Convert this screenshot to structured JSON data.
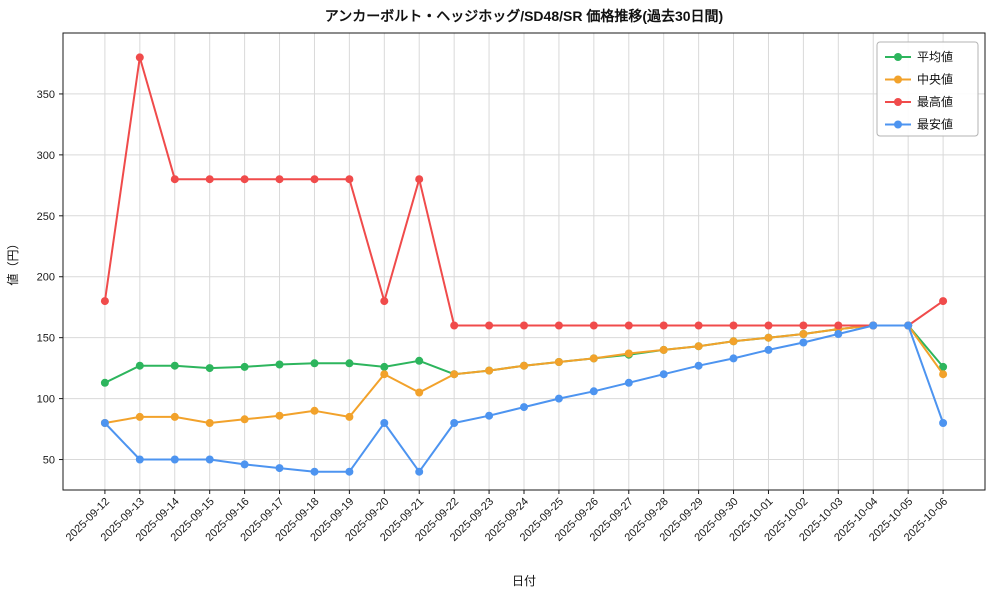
{
  "chart_data": {
    "type": "line",
    "title": "アンカーボルト・ヘッジホッグ/SD48/SR 価格推移(過去30日間)",
    "xlabel": "日付",
    "ylabel": "値（円）",
    "ylim": [
      25,
      400
    ],
    "yticks": [
      50,
      100,
      150,
      200,
      250,
      300,
      350
    ],
    "grid": true,
    "legend_position": "upper right",
    "axis_color": "#1a1a1a",
    "grid_color": "#d9d9d9",
    "categories": [
      "2025-09-12",
      "2025-09-13",
      "2025-09-14",
      "2025-09-15",
      "2025-09-16",
      "2025-09-17",
      "2025-09-18",
      "2025-09-19",
      "2025-09-20",
      "2025-09-21",
      "2025-09-22",
      "2025-09-23",
      "2025-09-24",
      "2025-09-25",
      "2025-09-26",
      "2025-09-27",
      "2025-09-28",
      "2025-09-29",
      "2025-09-30",
      "2025-10-01",
      "2025-10-02",
      "2025-10-03",
      "2025-10-04",
      "2025-10-05",
      "2025-10-06"
    ],
    "series": [
      {
        "id": "avg",
        "name": "平均値",
        "color": "#2db55d",
        "values": [
          113,
          127,
          127,
          125,
          126,
          128,
          129,
          129,
          126,
          131,
          120,
          123,
          127,
          130,
          133,
          136,
          140,
          143,
          147,
          150,
          153,
          157,
          160,
          160,
          126
        ]
      },
      {
        "id": "median",
        "name": "中央値",
        "color": "#f2a22b",
        "values": [
          80,
          85,
          85,
          80,
          83,
          86,
          90,
          85,
          120,
          105,
          120,
          123,
          127,
          130,
          133,
          137,
          140,
          143,
          147,
          150,
          153,
          157,
          160,
          160,
          120
        ]
      },
      {
        "id": "max",
        "name": "最高値",
        "color": "#f04b4b",
        "values": [
          180,
          380,
          280,
          280,
          280,
          280,
          280,
          280,
          180,
          280,
          160,
          160,
          160,
          160,
          160,
          160,
          160,
          160,
          160,
          160,
          160,
          160,
          160,
          160,
          180
        ]
      },
      {
        "id": "min",
        "name": "最安値",
        "color": "#4d94f0",
        "values": [
          80,
          50,
          50,
          50,
          46,
          43,
          40,
          40,
          80,
          40,
          80,
          86,
          93,
          100,
          106,
          113,
          120,
          127,
          133,
          140,
          146,
          153,
          160,
          160,
          80
        ]
      }
    ]
  }
}
